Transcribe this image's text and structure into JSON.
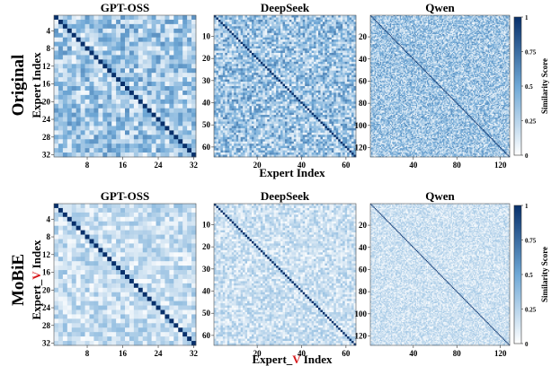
{
  "figure": {
    "row_labels": [
      "Original",
      "MoBiE"
    ],
    "rows": [
      {
        "label": "Original",
        "ylabel": "Expert Index",
        "ylabel_red": "",
        "xlabel": "Expert Index",
        "xlabel_red": ""
      },
      {
        "label": "MoBiE",
        "ylabel_pre": "Expert_",
        "ylabel_red": "V",
        "ylabel_post": " Index",
        "xlabel_pre": "Expert_",
        "xlabel_red": "V",
        "xlabel_post": " Index"
      }
    ],
    "colorbar": {
      "label": "Similarity Score",
      "ticks": [
        "0",
        "0.25",
        "0.5",
        "0.75",
        "1"
      ],
      "colors": {
        "low": "#ffffff",
        "mid": "#6fa8d6",
        "high": "#08306b"
      }
    },
    "accent_color": "#d7191c"
  },
  "chart_data": [
    {
      "type": "heatmap",
      "row": "Original",
      "title": "GPT-OSS",
      "n": 32,
      "xticks": [
        8,
        16,
        24,
        32
      ],
      "yticks": [
        4,
        8,
        12,
        16,
        20,
        24,
        28,
        32
      ],
      "diag": 1.0,
      "mean": 0.32,
      "spread": 0.28
    },
    {
      "type": "heatmap",
      "row": "Original",
      "title": "DeepSeek",
      "n": 64,
      "xticks": [
        20,
        40,
        60
      ],
      "yticks": [
        10,
        20,
        30,
        40,
        50,
        60
      ],
      "diag": 1.0,
      "mean": 0.35,
      "spread": 0.3
    },
    {
      "type": "heatmap",
      "row": "Original",
      "title": "Qwen",
      "n": 128,
      "xticks": [
        40,
        80,
        120
      ],
      "yticks": [
        20,
        40,
        60,
        80,
        100,
        120
      ],
      "diag": 1.0,
      "mean": 0.33,
      "spread": 0.3
    },
    {
      "type": "heatmap",
      "row": "MoBiE",
      "title": "GPT-OSS",
      "n": 32,
      "xticks": [
        8,
        16,
        24,
        32
      ],
      "yticks": [
        4,
        8,
        12,
        16,
        20,
        24,
        28,
        32
      ],
      "diag": 1.0,
      "mean": 0.2,
      "spread": 0.18
    },
    {
      "type": "heatmap",
      "row": "MoBiE",
      "title": "DeepSeek",
      "n": 64,
      "xticks": [
        20,
        40,
        60
      ],
      "yticks": [
        10,
        20,
        30,
        40,
        50,
        60
      ],
      "diag": 1.0,
      "mean": 0.18,
      "spread": 0.16
    },
    {
      "type": "heatmap",
      "row": "MoBiE",
      "title": "Qwen",
      "n": 128,
      "xticks": [
        40,
        80,
        120
      ],
      "yticks": [
        20,
        40,
        60,
        80,
        100,
        120
      ],
      "diag": 1.0,
      "mean": 0.17,
      "spread": 0.15
    }
  ]
}
